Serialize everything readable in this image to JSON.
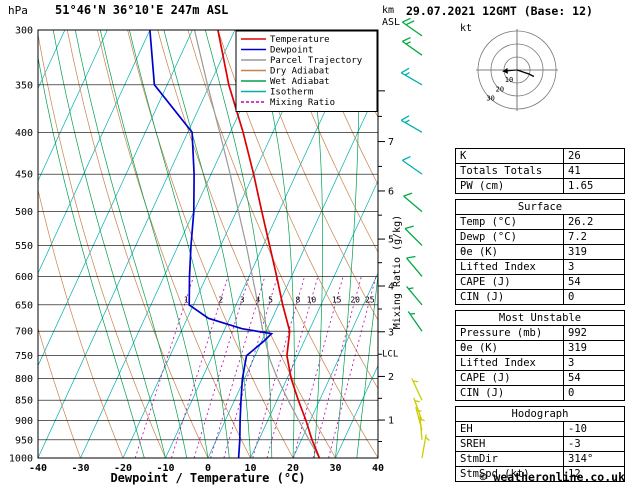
{
  "header": {
    "pressure_unit": "hPa",
    "station": "51°46'N 36°10'E 247m ASL",
    "right_title": "29.07.2021 12GMT (Base: 12)",
    "footer": "© weatheronline.co.uk"
  },
  "colors": {
    "temperature": "#dd0000",
    "dewpoint": "#0000cc",
    "parcel": "#999999",
    "dry_adiabat": "#c8824b",
    "wet_adiabat": "#00a050",
    "isotherm": "#00b0b0",
    "mixing_ratio": "#bb00bb",
    "barb_yellow": "#cccc00",
    "barb_green": "#00aa44",
    "barb_cyan": "#00b0b0"
  },
  "legend": [
    {
      "label": "Temperature",
      "color": "#dd0000"
    },
    {
      "label": "Dewpoint",
      "color": "#0000cc"
    },
    {
      "label": "Parcel Trajectory",
      "color": "#999999"
    },
    {
      "label": "Dry Adiabat",
      "color": "#c8824b"
    },
    {
      "label": "Wet Adiabat",
      "color": "#00a050"
    },
    {
      "label": "Isotherm",
      "color": "#00b0b0"
    },
    {
      "label": "Mixing Ratio",
      "color": "#bb00bb",
      "dashed": true
    }
  ],
  "chart_data": {
    "type": "skewt-log-p",
    "xlabel": "Dewpoint / Temperature (°C)",
    "km_unit": "km",
    "asl_unit": "ASL",
    "mixing_ratio_label": "Mixing Ratio (g/kg)",
    "pressure_axis": [
      300,
      350,
      400,
      450,
      500,
      550,
      600,
      650,
      700,
      750,
      800,
      850,
      900,
      950,
      1000
    ],
    "temp_axis": [
      -40,
      -30,
      -20,
      -10,
      0,
      10,
      20,
      30,
      40
    ],
    "km_ticks": [
      1,
      2,
      3,
      4,
      5,
      6,
      7
    ],
    "mixing_ratio_lines": [
      1,
      2,
      3,
      4,
      5,
      8,
      10,
      15,
      20,
      25
    ],
    "lcl_label": "LCL",
    "lcl_pressure": 745,
    "temperature_profile": [
      [
        1000,
        26.2
      ],
      [
        950,
        22.5
      ],
      [
        900,
        19
      ],
      [
        850,
        15
      ],
      [
        800,
        11
      ],
      [
        750,
        7.5
      ],
      [
        700,
        5.5
      ],
      [
        650,
        1
      ],
      [
        600,
        -3.5
      ],
      [
        550,
        -8.5
      ],
      [
        500,
        -14
      ],
      [
        450,
        -20
      ],
      [
        400,
        -27
      ],
      [
        350,
        -35.5
      ],
      [
        300,
        -44
      ]
    ],
    "dewpoint_profile": [
      [
        1000,
        7.2
      ],
      [
        950,
        5.5
      ],
      [
        900,
        3.5
      ],
      [
        850,
        1.5
      ],
      [
        800,
        -0.5
      ],
      [
        750,
        -2
      ],
      [
        720,
        0.5
      ],
      [
        705,
        1.5
      ],
      [
        695,
        -6
      ],
      [
        675,
        -15
      ],
      [
        650,
        -21
      ],
      [
        600,
        -24
      ],
      [
        550,
        -27
      ],
      [
        500,
        -30
      ],
      [
        450,
        -34
      ],
      [
        400,
        -39
      ],
      [
        350,
        -53
      ],
      [
        300,
        -60
      ]
    ],
    "parcel_profile": [
      [
        1000,
        26.2
      ],
      [
        950,
        21.8
      ],
      [
        900,
        17.3
      ],
      [
        850,
        12.6
      ],
      [
        800,
        7.8
      ],
      [
        758,
        3.9
      ],
      [
        700,
        -0.8
      ],
      [
        650,
        -4.8
      ],
      [
        600,
        -9.2
      ],
      [
        550,
        -14
      ],
      [
        500,
        -19.5
      ],
      [
        450,
        -25.5
      ],
      [
        400,
        -32.5
      ],
      [
        350,
        -40.5
      ],
      [
        300,
        -49.5
      ]
    ],
    "wind_barbs": [
      {
        "p": 305,
        "spd": 20,
        "dir": 305,
        "color": "green"
      },
      {
        "p": 322,
        "spd": 15,
        "dir": 305,
        "color": "green"
      },
      {
        "p": 350,
        "spd": 15,
        "dir": 300,
        "color": "cyan"
      },
      {
        "p": 400,
        "spd": 15,
        "dir": 300,
        "color": "cyan"
      },
      {
        "p": 450,
        "spd": 10,
        "dir": 305,
        "color": "cyan"
      },
      {
        "p": 500,
        "spd": 10,
        "dir": 310,
        "color": "green"
      },
      {
        "p": 550,
        "spd": 10,
        "dir": 315,
        "color": "green"
      },
      {
        "p": 600,
        "spd": 10,
        "dir": 320,
        "color": "green"
      },
      {
        "p": 650,
        "spd": 5,
        "dir": 320,
        "color": "green"
      },
      {
        "p": 700,
        "spd": 5,
        "dir": 325,
        "color": "green"
      },
      {
        "p": 850,
        "spd": 5,
        "dir": 335,
        "color": "yellow"
      },
      {
        "p": 900,
        "spd": 5,
        "dir": 340,
        "color": "yellow"
      },
      {
        "p": 925,
        "spd": 5,
        "dir": 345,
        "color": "yellow"
      },
      {
        "p": 950,
        "spd": 5,
        "dir": 355,
        "color": "yellow"
      },
      {
        "p": 1000,
        "spd": 5,
        "dir": 10,
        "color": "yellow"
      }
    ],
    "hodograph": {
      "unit": "kt",
      "rings": [
        10,
        20,
        30
      ],
      "trace": [
        [
          0,
          0
        ],
        [
          3,
          -1
        ],
        [
          6,
          -2
        ],
        [
          9,
          -3
        ],
        [
          13,
          -5
        ]
      ],
      "storm_arrow": [
        -11,
        -1
      ]
    }
  },
  "panel": {
    "stats": {
      "rows": [
        [
          "K",
          "26"
        ],
        [
          "Totals Totals",
          "41"
        ],
        [
          "PW (cm)",
          "1.65"
        ]
      ]
    },
    "surface": {
      "title": "Surface",
      "rows": [
        [
          "Temp (°C)",
          "26.2"
        ],
        [
          "Dewp (°C)",
          "7.2"
        ],
        [
          "θe (K)",
          "319"
        ],
        [
          "Lifted Index",
          "3"
        ],
        [
          "CAPE (J)",
          "54"
        ],
        [
          "CIN (J)",
          "0"
        ]
      ]
    },
    "most_unstable": {
      "title": "Most Unstable",
      "rows": [
        [
          "Pressure (mb)",
          "992"
        ],
        [
          "θe (K)",
          "319"
        ],
        [
          "Lifted Index",
          "3"
        ],
        [
          "CAPE (J)",
          "54"
        ],
        [
          "CIN (J)",
          "0"
        ]
      ]
    },
    "hodograph_stats": {
      "title": "Hodograph",
      "rows": [
        [
          "EH",
          "-10"
        ],
        [
          "SREH",
          "-3"
        ],
        [
          "StmDir",
          "314°"
        ],
        [
          "StmSpd (kt)",
          "12"
        ]
      ]
    }
  }
}
